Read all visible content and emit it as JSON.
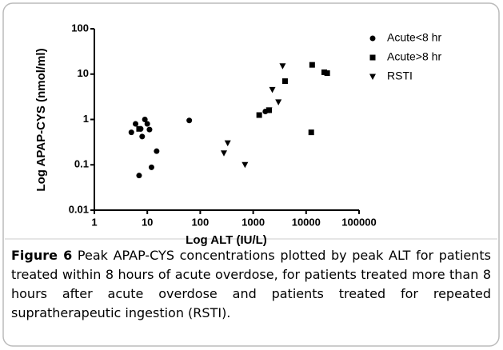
{
  "chart_data": {
    "type": "scatter",
    "xlabel": "Log ALT (IU/L)",
    "ylabel": "Log APAP-CYS (nmol/ml)",
    "xscale": "log",
    "yscale": "log",
    "xlim": [
      1,
      100000
    ],
    "ylim": [
      0.01,
      100
    ],
    "xticks": [
      1,
      10,
      100,
      1000,
      10000,
      100000
    ],
    "yticks": [
      0.01,
      0.1,
      1,
      10,
      100
    ],
    "legend": "upper right",
    "series": [
      {
        "name": "Acute<8 hr",
        "marker": "circle",
        "color": "#000000",
        "x": [
          5,
          6,
          7,
          7.5,
          8,
          9,
          10,
          11,
          12,
          15,
          62,
          1700
        ],
        "values": [
          0.52,
          0.8,
          0.058,
          0.62,
          0.42,
          1.0,
          0.8,
          0.6,
          0.088,
          0.2,
          0.95,
          1.5
        ]
      },
      {
        "name": "Acute>8 hr",
        "marker": "square",
        "color": "#000000",
        "x": [
          7,
          1300,
          4000,
          2000,
          13000,
          12500,
          22000,
          25000
        ],
        "values": [
          0.62,
          1.25,
          7,
          1.6,
          16,
          0.52,
          11,
          10.5
        ]
      },
      {
        "name": "RSTI",
        "marker": "triangle",
        "color": "#000000",
        "x": [
          280,
          330,
          700,
          2300,
          3000,
          3600,
          2000
        ],
        "values": [
          0.18,
          0.3,
          0.1,
          4.5,
          2.4,
          15,
          1.6
        ]
      }
    ],
    "caption_label": "Figure 6",
    "caption": "Peak APAP-CYS concentrations plotted by peak ALT for patients treated within 8 hours of acute overdose, for patients treated more than 8 hours after acute overdose and patients treated for repeated supratherapeutic ingestion (RSTI)."
  }
}
